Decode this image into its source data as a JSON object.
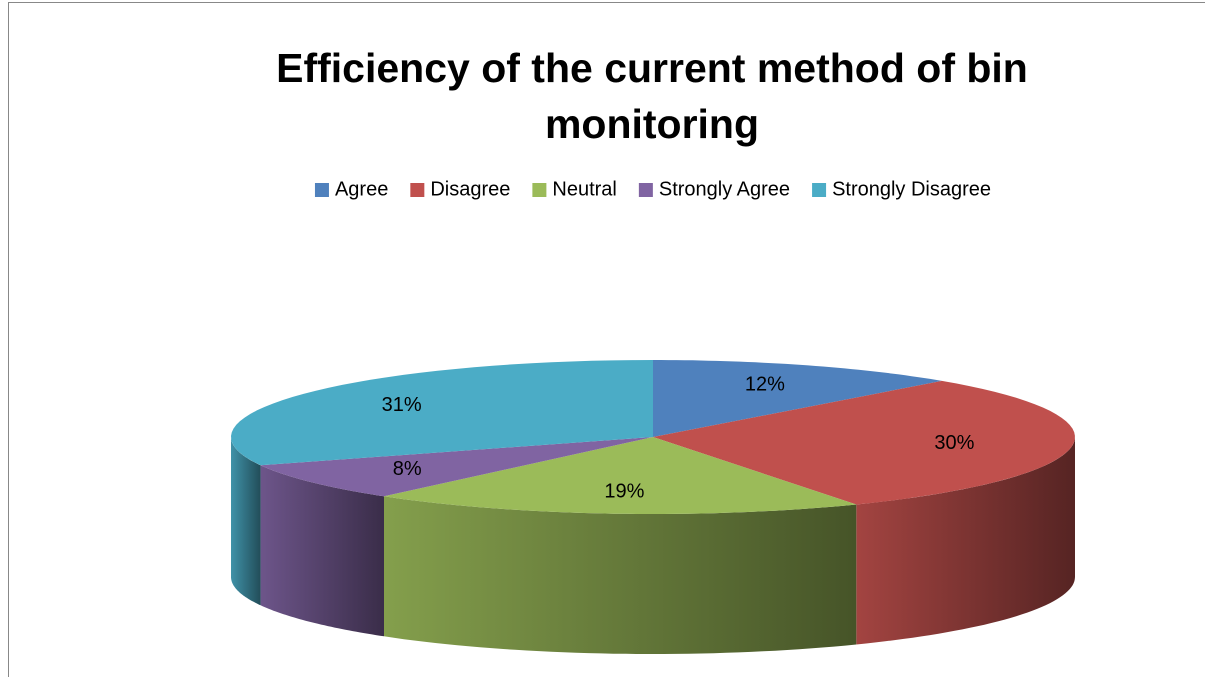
{
  "chart_data": {
    "type": "pie",
    "title": "Efficiency of the current method of bin monitoring",
    "categories": [
      "Agree",
      "Disagree",
      "Neutral",
      "Strongly Agree",
      "Strongly Disagree"
    ],
    "values": [
      12,
      30,
      19,
      8,
      31
    ],
    "value_labels": [
      "12%",
      "30%",
      "19%",
      "8%",
      "31%"
    ],
    "colors": [
      "#4f81bd",
      "#c0504d",
      "#9bbb59",
      "#8064a2",
      "#4bacc6"
    ],
    "legend": "top"
  }
}
